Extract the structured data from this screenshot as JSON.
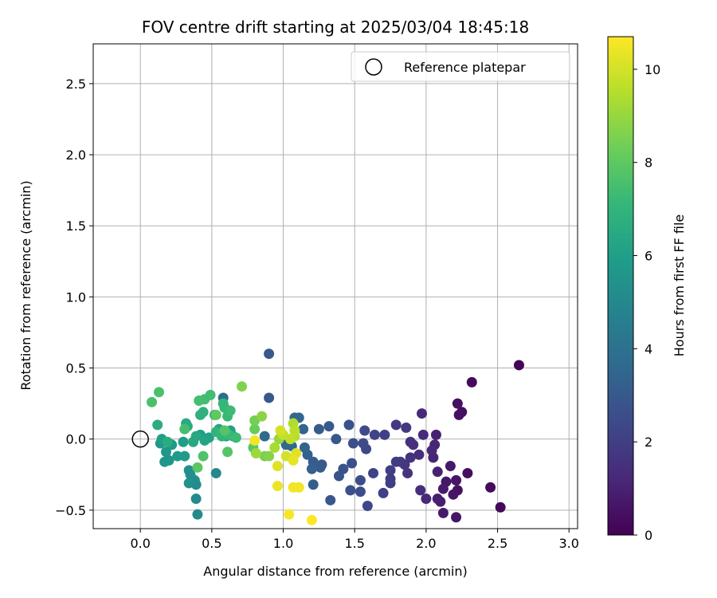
{
  "chart_data": {
    "type": "scatter",
    "title": "FOV centre drift starting at 2025/03/04 18:45:18",
    "xlabel": "Angular distance from reference (arcmin)",
    "ylabel": "Rotation from reference (arcmin)",
    "xlim": [
      -0.33,
      3.06
    ],
    "ylim": [
      -0.63,
      2.78
    ],
    "xticks": [
      0.0,
      0.5,
      1.0,
      1.5,
      2.0,
      2.5,
      3.0
    ],
    "xtick_labels": [
      "0.0",
      "0.5",
      "1.0",
      "1.5",
      "2.0",
      "2.5",
      "3.0"
    ],
    "yticks": [
      -0.5,
      0.0,
      0.5,
      1.0,
      1.5,
      2.0,
      2.5
    ],
    "ytick_labels": [
      "−0.5",
      "0.0",
      "0.5",
      "1.0",
      "1.5",
      "2.0",
      "2.5"
    ],
    "grid": true,
    "colormap": "viridis",
    "colorbar": {
      "label": "Hours from first FF file",
      "range": [
        0,
        10.7
      ],
      "ticks": [
        0,
        2,
        4,
        6,
        8,
        10
      ],
      "tick_labels": [
        "0",
        "2",
        "4",
        "6",
        "8",
        "10"
      ]
    },
    "legend": {
      "position": "upper right",
      "entries": [
        {
          "label": "Reference platepar",
          "marker": "open-circle"
        }
      ]
    },
    "reference_point": {
      "x": 0.0,
      "y": 0.0
    },
    "points": [
      {
        "x": 2.65,
        "y": 0.52,
        "c": 0.1
      },
      {
        "x": 2.52,
        "y": -0.48,
        "c": 0.2
      },
      {
        "x": 2.45,
        "y": -0.34,
        "c": 0.3
      },
      {
        "x": 2.32,
        "y": 0.4,
        "c": 0.3
      },
      {
        "x": 2.29,
        "y": -0.24,
        "c": 0.4
      },
      {
        "x": 2.25,
        "y": 0.19,
        "c": 0.4
      },
      {
        "x": 2.23,
        "y": 0.17,
        "c": 0.5
      },
      {
        "x": 2.22,
        "y": 0.25,
        "c": 0.5
      },
      {
        "x": 2.22,
        "y": -0.36,
        "c": 0.5
      },
      {
        "x": 2.21,
        "y": -0.55,
        "c": 0.6
      },
      {
        "x": 2.21,
        "y": -0.29,
        "c": 0.6
      },
      {
        "x": 2.19,
        "y": -0.39,
        "c": 0.6
      },
      {
        "x": 2.17,
        "y": -0.19,
        "c": 0.7
      },
      {
        "x": 2.14,
        "y": -0.3,
        "c": 0.7
      },
      {
        "x": 2.12,
        "y": -0.35,
        "c": 0.8
      },
      {
        "x": 2.12,
        "y": -0.52,
        "c": 0.8
      },
      {
        "x": 2.1,
        "y": -0.44,
        "c": 0.9
      },
      {
        "x": 2.08,
        "y": -0.42,
        "c": 0.9
      },
      {
        "x": 2.08,
        "y": -0.23,
        "c": 1.0
      },
      {
        "x": 2.07,
        "y": 0.03,
        "c": 1.0
      },
      {
        "x": 2.06,
        "y": -0.04,
        "c": 1.1
      },
      {
        "x": 2.05,
        "y": -0.13,
        "c": 1.1
      },
      {
        "x": 2.04,
        "y": -0.08,
        "c": 1.2
      },
      {
        "x": 2.0,
        "y": -0.42,
        "c": 1.2
      },
      {
        "x": 1.98,
        "y": 0.03,
        "c": 1.3
      },
      {
        "x": 1.97,
        "y": 0.18,
        "c": 1.3
      },
      {
        "x": 1.96,
        "y": -0.36,
        "c": 1.4
      },
      {
        "x": 1.95,
        "y": -0.11,
        "c": 1.4
      },
      {
        "x": 1.91,
        "y": -0.04,
        "c": 1.5
      },
      {
        "x": 1.89,
        "y": -0.02,
        "c": 1.5
      },
      {
        "x": 1.89,
        "y": -0.13,
        "c": 1.6
      },
      {
        "x": 1.87,
        "y": -0.24,
        "c": 1.6
      },
      {
        "x": 1.86,
        "y": 0.08,
        "c": 1.7
      },
      {
        "x": 1.85,
        "y": -0.18,
        "c": 1.7
      },
      {
        "x": 1.82,
        "y": -0.16,
        "c": 1.8
      },
      {
        "x": 1.79,
        "y": 0.1,
        "c": 1.8
      },
      {
        "x": 1.79,
        "y": -0.16,
        "c": 1.9
      },
      {
        "x": 1.75,
        "y": -0.28,
        "c": 1.9
      },
      {
        "x": 1.75,
        "y": -0.22,
        "c": 2.0
      },
      {
        "x": 1.75,
        "y": -0.31,
        "c": 2.0
      },
      {
        "x": 1.71,
        "y": 0.03,
        "c": 2.1
      },
      {
        "x": 1.7,
        "y": -0.38,
        "c": 2.1
      },
      {
        "x": 1.64,
        "y": 0.03,
        "c": 2.2
      },
      {
        "x": 1.63,
        "y": -0.24,
        "c": 2.2
      },
      {
        "x": 1.59,
        "y": -0.47,
        "c": 2.3
      },
      {
        "x": 1.58,
        "y": -0.07,
        "c": 2.3
      },
      {
        "x": 1.57,
        "y": 0.06,
        "c": 2.4
      },
      {
        "x": 1.56,
        "y": -0.03,
        "c": 2.4
      },
      {
        "x": 1.54,
        "y": -0.29,
        "c": 2.5
      },
      {
        "x": 1.54,
        "y": -0.37,
        "c": 2.5
      },
      {
        "x": 1.49,
        "y": -0.03,
        "c": 2.6
      },
      {
        "x": 1.48,
        "y": -0.17,
        "c": 2.6
      },
      {
        "x": 1.47,
        "y": -0.36,
        "c": 2.7
      },
      {
        "x": 1.46,
        "y": 0.1,
        "c": 2.7
      },
      {
        "x": 1.42,
        "y": -0.21,
        "c": 2.8
      },
      {
        "x": 1.39,
        "y": -0.26,
        "c": 2.8
      },
      {
        "x": 1.37,
        "y": 0.0,
        "c": 2.9
      },
      {
        "x": 1.33,
        "y": -0.43,
        "c": 2.9
      },
      {
        "x": 1.32,
        "y": 0.09,
        "c": 3.0
      },
      {
        "x": 1.27,
        "y": -0.18,
        "c": 3.0
      },
      {
        "x": 1.26,
        "y": -0.2,
        "c": 3.1
      },
      {
        "x": 1.25,
        "y": 0.07,
        "c": 3.1
      },
      {
        "x": 1.21,
        "y": -0.32,
        "c": 3.2
      },
      {
        "x": 1.21,
        "y": -0.16,
        "c": 3.2
      },
      {
        "x": 1.2,
        "y": -0.21,
        "c": 3.3
      },
      {
        "x": 1.17,
        "y": -0.11,
        "c": 3.3
      },
      {
        "x": 1.15,
        "y": -0.06,
        "c": 3.4
      },
      {
        "x": 1.14,
        "y": 0.07,
        "c": 3.4
      },
      {
        "x": 1.11,
        "y": 0.15,
        "c": 3.5
      },
      {
        "x": 1.08,
        "y": 0.15,
        "c": 3.5
      },
      {
        "x": 1.06,
        "y": -0.05,
        "c": 3.6
      },
      {
        "x": 1.02,
        "y": -0.04,
        "c": 3.6
      },
      {
        "x": 0.9,
        "y": 0.6,
        "c": 3.0
      },
      {
        "x": 0.9,
        "y": 0.29,
        "c": 3.0
      },
      {
        "x": 0.87,
        "y": 0.02,
        "c": 3.7
      },
      {
        "x": 0.58,
        "y": 0.29,
        "c": 3.8
      },
      {
        "x": 0.53,
        "y": -0.24,
        "c": 5.0
      },
      {
        "x": 0.4,
        "y": -0.53,
        "c": 5.1
      },
      {
        "x": 0.39,
        "y": -0.42,
        "c": 5.1
      },
      {
        "x": 0.39,
        "y": -0.32,
        "c": 5.2
      },
      {
        "x": 0.38,
        "y": -0.29,
        "c": 5.2
      },
      {
        "x": 0.35,
        "y": -0.25,
        "c": 5.3
      },
      {
        "x": 0.34,
        "y": -0.22,
        "c": 5.3
      },
      {
        "x": 0.34,
        "y": -0.31,
        "c": 5.4
      },
      {
        "x": 0.2,
        "y": -0.15,
        "c": 5.5
      },
      {
        "x": 0.18,
        "y": -0.09,
        "c": 5.6
      },
      {
        "x": 0.17,
        "y": -0.16,
        "c": 5.6
      },
      {
        "x": 0.22,
        "y": -0.04,
        "c": 5.7
      },
      {
        "x": 0.14,
        "y": -0.03,
        "c": 5.7
      },
      {
        "x": 0.26,
        "y": -0.12,
        "c": 5.8
      },
      {
        "x": 0.31,
        "y": -0.12,
        "c": 5.8
      },
      {
        "x": 0.3,
        "y": -0.02,
        "c": 5.9
      },
      {
        "x": 0.15,
        "y": 0.0,
        "c": 6.0
      },
      {
        "x": 0.42,
        "y": 0.03,
        "c": 6.0
      },
      {
        "x": 0.48,
        "y": 0.01,
        "c": 6.1
      },
      {
        "x": 0.63,
        "y": 0.06,
        "c": 6.1
      },
      {
        "x": 0.65,
        "y": 0.02,
        "c": 6.2
      },
      {
        "x": 0.55,
        "y": 0.07,
        "c": 6.2
      },
      {
        "x": 0.6,
        "y": 0.02,
        "c": 6.3
      },
      {
        "x": 0.45,
        "y": -0.01,
        "c": 6.3
      },
      {
        "x": 0.39,
        "y": 0.02,
        "c": 6.4
      },
      {
        "x": 0.37,
        "y": -0.02,
        "c": 6.4
      },
      {
        "x": 0.33,
        "y": 0.09,
        "c": 6.5
      },
      {
        "x": 0.32,
        "y": 0.11,
        "c": 6.5
      },
      {
        "x": 0.12,
        "y": 0.1,
        "c": 6.6
      },
      {
        "x": 0.19,
        "y": -0.02,
        "c": 6.6
      },
      {
        "x": 0.42,
        "y": 0.17,
        "c": 6.8
      },
      {
        "x": 0.44,
        "y": 0.19,
        "c": 6.8
      },
      {
        "x": 0.52,
        "y": 0.17,
        "c": 6.9
      },
      {
        "x": 0.53,
        "y": 0.05,
        "c": 7.0
      },
      {
        "x": 0.57,
        "y": 0.02,
        "c": 7.0
      },
      {
        "x": 0.58,
        "y": 0.25,
        "c": 7.1
      },
      {
        "x": 0.59,
        "y": 0.22,
        "c": 7.1
      },
      {
        "x": 0.61,
        "y": 0.16,
        "c": 7.2
      },
      {
        "x": 0.62,
        "y": 0.03,
        "c": 7.2
      },
      {
        "x": 0.63,
        "y": 0.2,
        "c": 7.3
      },
      {
        "x": 0.67,
        "y": 0.01,
        "c": 7.3
      },
      {
        "x": 0.49,
        "y": 0.31,
        "c": 7.4
      },
      {
        "x": 0.45,
        "y": 0.28,
        "c": 7.4
      },
      {
        "x": 0.41,
        "y": 0.27,
        "c": 7.5
      },
      {
        "x": 0.31,
        "y": 0.07,
        "c": 7.5
      },
      {
        "x": 0.13,
        "y": 0.33,
        "c": 7.6
      },
      {
        "x": 0.08,
        "y": 0.26,
        "c": 7.6
      },
      {
        "x": 0.44,
        "y": -0.12,
        "c": 7.7
      },
      {
        "x": 0.59,
        "y": 0.06,
        "c": 7.8
      },
      {
        "x": 0.61,
        "y": -0.09,
        "c": 7.8
      },
      {
        "x": 0.79,
        "y": -0.06,
        "c": 7.9
      },
      {
        "x": 0.4,
        "y": -0.2,
        "c": 7.9
      },
      {
        "x": 0.53,
        "y": 0.17,
        "c": 8.0
      },
      {
        "x": 0.8,
        "y": 0.07,
        "c": 8.2
      },
      {
        "x": 0.8,
        "y": 0.13,
        "c": 8.4
      },
      {
        "x": 0.71,
        "y": 0.37,
        "c": 8.6
      },
      {
        "x": 0.87,
        "y": -0.12,
        "c": 8.5
      },
      {
        "x": 0.85,
        "y": 0.16,
        "c": 8.8
      },
      {
        "x": 0.9,
        "y": -0.12,
        "c": 8.7
      },
      {
        "x": 0.97,
        "y": 0.0,
        "c": 9.0
      },
      {
        "x": 0.81,
        "y": -0.1,
        "c": 9.1
      },
      {
        "x": 0.94,
        "y": -0.06,
        "c": 9.3
      },
      {
        "x": 1.07,
        "y": 0.11,
        "c": 9.4
      },
      {
        "x": 1.08,
        "y": 0.02,
        "c": 9.5
      },
      {
        "x": 1.08,
        "y": 0.06,
        "c": 9.6
      },
      {
        "x": 1.0,
        "y": 0.03,
        "c": 9.8
      },
      {
        "x": 0.98,
        "y": 0.06,
        "c": 10.0
      },
      {
        "x": 1.05,
        "y": 0.0,
        "c": 9.7
      },
      {
        "x": 1.02,
        "y": -0.12,
        "c": 10.0
      },
      {
        "x": 0.96,
        "y": -0.19,
        "c": 10.2
      },
      {
        "x": 1.09,
        "y": -0.1,
        "c": 10.2
      },
      {
        "x": 1.07,
        "y": -0.15,
        "c": 10.3
      },
      {
        "x": 0.96,
        "y": -0.33,
        "c": 10.4
      },
      {
        "x": 1.07,
        "y": -0.34,
        "c": 10.5
      },
      {
        "x": 1.11,
        "y": -0.34,
        "c": 10.5
      },
      {
        "x": 1.04,
        "y": -0.53,
        "c": 10.6
      },
      {
        "x": 1.2,
        "y": -0.57,
        "c": 10.7
      },
      {
        "x": 0.8,
        "y": -0.01,
        "c": 10.5
      }
    ]
  }
}
